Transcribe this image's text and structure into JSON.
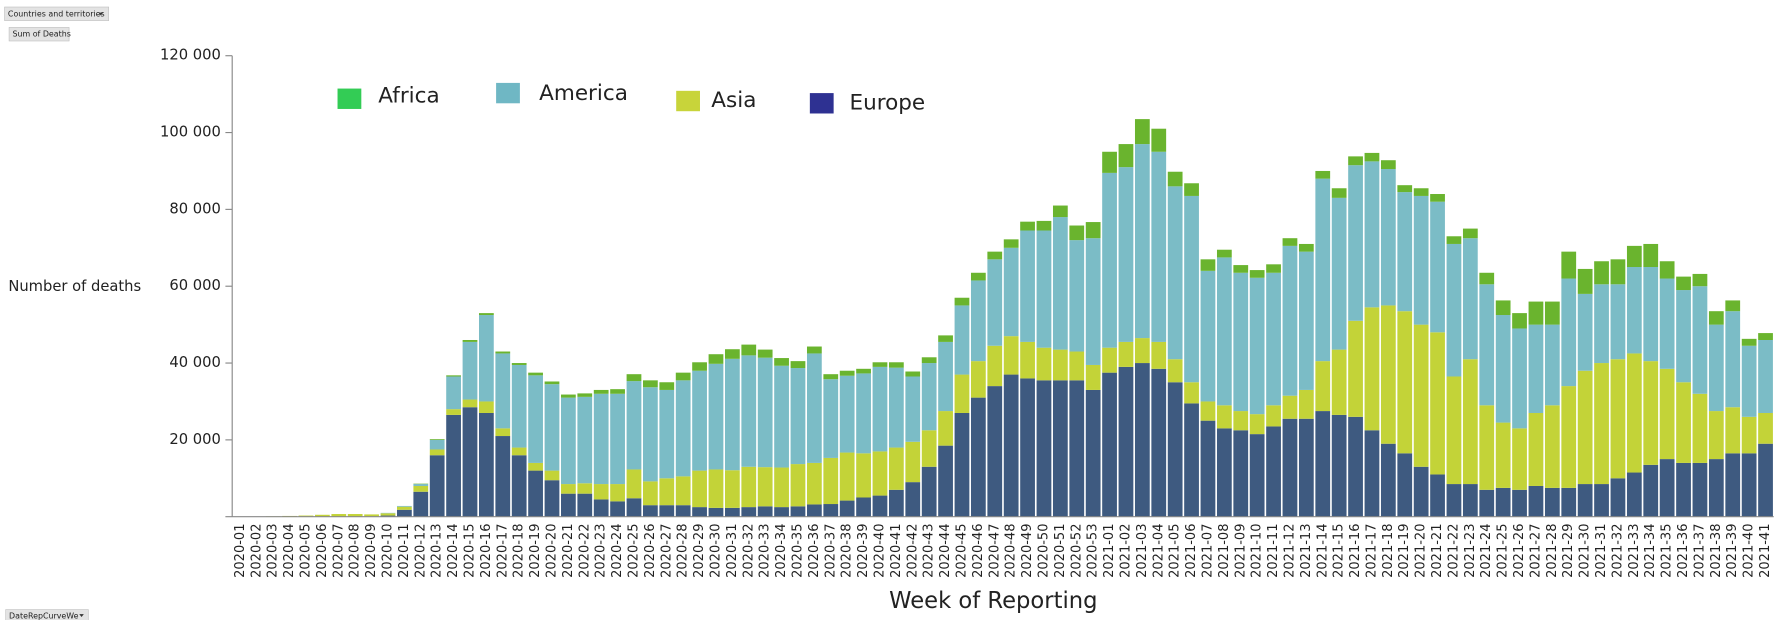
{
  "controls": {
    "filter": "Countries and territories",
    "measure": "Sum of Deaths",
    "axis_field": "DateRepCurveWe"
  },
  "chart_data": {
    "type": "stacked_bar",
    "ylabel": "Number of deaths",
    "xlabel": "Week of Reporting",
    "ylim": [
      0,
      120000
    ],
    "yticks": [
      {
        "value": 20000,
        "label": "20 000"
      },
      {
        "value": 40000,
        "label": "40 000"
      },
      {
        "value": 60000,
        "label": "60 000"
      },
      {
        "value": 80000,
        "label": "80 000"
      },
      {
        "value": 100000,
        "label": "100 000"
      },
      {
        "value": 120000,
        "label": "120 000"
      }
    ],
    "categories": [
      "2020-01",
      "2020-02",
      "2020-03",
      "2020-04",
      "2020-05",
      "2020-06",
      "2020-07",
      "2020-08",
      "2020-09",
      "2020-10",
      "2020-11",
      "2020-12",
      "2020-13",
      "2020-14",
      "2020-15",
      "2020-16",
      "2020-17",
      "2020-18",
      "2020-19",
      "2020-20",
      "2020-21",
      "2020-22",
      "2020-23",
      "2020-24",
      "2020-25",
      "2020-26",
      "2020-27",
      "2020-28",
      "2020-29",
      "2020-30",
      "2020-31",
      "2020-32",
      "2020-33",
      "2020-34",
      "2020-35",
      "2020-36",
      "2020-37",
      "2020-38",
      "2020-39",
      "2020-40",
      "2020-41",
      "2020-42",
      "2020-43",
      "2020-44",
      "2020-45",
      "2020-46",
      "2020-47",
      "2020-48",
      "2020-49",
      "2020-50",
      "2020-51",
      "2020-52",
      "2020-53",
      "2021-01",
      "2021-02",
      "2021-03",
      "2021-04",
      "2021-05",
      "2021-06",
      "2021-07",
      "2021-08",
      "2021-09",
      "2021-10",
      "2021-11",
      "2021-12",
      "2021-13",
      "2021-14",
      "2021-15",
      "2021-16",
      "2021-17",
      "2021-18",
      "2021-19",
      "2021-20",
      "2021-21",
      "2021-22",
      "2021-23",
      "2021-24",
      "2021-25",
      "2021-26",
      "2021-27",
      "2021-28",
      "2021-29",
      "2021-30",
      "2021-31",
      "2021-32",
      "2021-33",
      "2021-34",
      "2021-35",
      "2021-36",
      "2021-37",
      "2021-38",
      "2021-39",
      "2021-40",
      "2021-41"
    ],
    "series": [
      {
        "name": "Africa",
        "color": "#6ab42e",
        "legend_color": "#33cc55",
        "values": [
          0,
          0,
          0,
          0,
          0,
          0,
          0,
          0,
          0,
          0,
          0,
          100,
          200,
          300,
          500,
          500,
          500,
          500,
          700,
          700,
          800,
          900,
          1000,
          1200,
          1800,
          1800,
          2000,
          2000,
          2200,
          2500,
          2500,
          2800,
          2100,
          2000,
          1800,
          1800,
          1300,
          1300,
          1200,
          1200,
          1400,
          1300,
          1500,
          1700,
          2000,
          2000,
          2000,
          2200,
          2300,
          2500,
          3000,
          3800,
          4200,
          5500,
          6000,
          6500,
          6000,
          3800,
          3300,
          3000,
          2000,
          2000,
          2000,
          2200,
          2000,
          2000,
          2000,
          2500,
          2300,
          2200,
          2300,
          1800,
          2000,
          2000,
          2000,
          2500,
          3000,
          3800,
          4000,
          6000,
          6000,
          7000,
          6500,
          6000,
          6500,
          5500,
          6000,
          4500,
          3500,
          3200,
          3500,
          2800,
          1800,
          1800
        ]
      },
      {
        "name": "America",
        "color": "#7bbcc6",
        "legend_color": "#6fb7c4",
        "values": [
          0,
          0,
          0,
          0,
          0,
          0,
          0,
          0,
          0,
          100,
          200,
          500,
          2500,
          8500,
          15000,
          22500,
          19500,
          21500,
          22800,
          22500,
          22500,
          22500,
          23500,
          23500,
          23000,
          24500,
          23000,
          25000,
          26000,
          27500,
          29000,
          29000,
          28500,
          26500,
          25000,
          28500,
          20500,
          20000,
          20800,
          22000,
          20800,
          17000,
          17500,
          18000,
          18000,
          21000,
          22500,
          23000,
          29000,
          30500,
          34500,
          29000,
          33000,
          45500,
          45500,
          50500,
          49500,
          45000,
          48500,
          34000,
          38500,
          36000,
          35500,
          34500,
          39000,
          36000,
          47500,
          39500,
          40500,
          38000,
          35500,
          31000,
          33500,
          34000,
          34500,
          31500,
          31500,
          28000,
          26000,
          23000,
          21000,
          28000,
          20000,
          20500,
          19500,
          22500,
          24500,
          23500,
          24000,
          28000,
          22500,
          25000,
          18500,
          19000
        ]
      },
      {
        "name": "Asia",
        "color": "#c3d338",
        "legend_color": "#c8d43a",
        "values": [
          0,
          0,
          100,
          200,
          300,
          500,
          700,
          700,
          500,
          600,
          800,
          1500,
          1500,
          1500,
          2000,
          3000,
          2000,
          2000,
          2000,
          2500,
          2500,
          2700,
          4000,
          4500,
          7500,
          6200,
          7000,
          7500,
          9500,
          10000,
          9800,
          10500,
          10200,
          10300,
          11000,
          10800,
          12000,
          12500,
          11500,
          11500,
          11000,
          10500,
          9500,
          9000,
          10000,
          9500,
          10500,
          10000,
          9500,
          8500,
          8000,
          7500,
          6500,
          6500,
          6500,
          6500,
          7000,
          6000,
          5500,
          5000,
          6000,
          5000,
          5200,
          5500,
          6000,
          7500,
          13000,
          17000,
          25000,
          32000,
          36000,
          37000,
          37000,
          37000,
          28000,
          32500,
          22000,
          17000,
          16000,
          19000,
          21500,
          26500,
          29500,
          31500,
          31000,
          31000,
          27000,
          23500,
          21000,
          18000,
          12500,
          12000,
          9500,
          8000
        ]
      },
      {
        "name": "Europe",
        "color": "#3e5a80",
        "legend_color": "#2e3192",
        "values": [
          0,
          0,
          0,
          0,
          0,
          0,
          0,
          0,
          100,
          300,
          1800,
          6500,
          16000,
          26500,
          28500,
          27000,
          21000,
          16000,
          12000,
          9500,
          6000,
          6000,
          4500,
          4000,
          4800,
          3000,
          3000,
          3000,
          2500,
          2300,
          2300,
          2500,
          2700,
          2500,
          2700,
          3200,
          3300,
          4200,
          5000,
          5500,
          7000,
          9000,
          13000,
          18500,
          27000,
          31000,
          34000,
          37000,
          36000,
          35500,
          35500,
          35500,
          33000,
          37500,
          39000,
          40000,
          38500,
          35000,
          29500,
          25000,
          23000,
          22500,
          21500,
          23500,
          25500,
          25500,
          27500,
          26500,
          26000,
          22500,
          19000,
          16500,
          13000,
          11000,
          8500,
          8500,
          7000,
          7500,
          7000,
          8000,
          7500,
          7500,
          8500,
          8500,
          10000,
          11500,
          13500,
          15000,
          14000,
          14000,
          15000,
          16500,
          16500,
          19000
        ]
      }
    ]
  }
}
